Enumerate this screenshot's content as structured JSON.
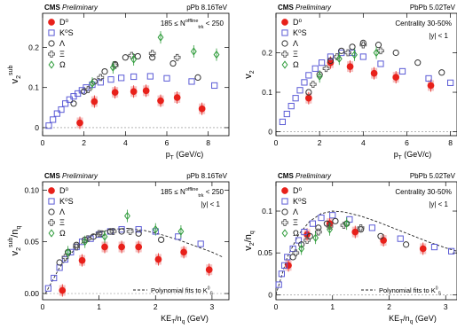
{
  "colors": {
    "D0": "#e8201a",
    "D0_box": "#f3b4b4",
    "K0S": "#5b5bd6",
    "Lambda": "#333333",
    "Xi": "#555555",
    "Omega": "#2e9b3a",
    "fit": "#222222"
  },
  "chart_data": [
    {
      "type": "scatter",
      "panel": "top-left",
      "header_cms": "CMS",
      "header_prelim": "Preliminary",
      "header_right": "pPb 8.16TeV",
      "annot_1": "185 ≤ N",
      "annot_1_sup": "offline",
      "annot_1_sub": "trk",
      "annot_1_end": " < 250",
      "annot_2": "",
      "ylabel_main": "v",
      "ylabel_sub": "2",
      "ylabel_sup": "sub",
      "ylabel_tail": "",
      "xlabel": "p",
      "xlabel_sub": "T",
      "xlabel_tail": " (GeV/c)",
      "xlim": [
        0,
        9
      ],
      "ylim": [
        -0.02,
        0.285
      ],
      "xticks": [
        0,
        2,
        4,
        6,
        8
      ],
      "yticks": [
        0,
        0.1,
        0.2
      ],
      "yticklabels": [
        "0",
        "0.1",
        "0.2"
      ],
      "legend_placement": "top-left",
      "legend": [
        "D⁰",
        "K⁰S",
        "Λ",
        "Ξ",
        "Ω"
      ],
      "series": [
        {
          "name": "D⁰",
          "marker": "filled-circle",
          "points": [
            [
              1.8,
              0.012
            ],
            [
              2.5,
              0.065
            ],
            [
              3.5,
              0.088
            ],
            [
              4.4,
              0.09
            ],
            [
              5.0,
              0.092
            ],
            [
              5.7,
              0.067
            ],
            [
              6.5,
              0.075
            ],
            [
              7.7,
              0.047
            ]
          ]
        },
        {
          "name": "K⁰S",
          "marker": "open-square",
          "points": [
            [
              0.3,
              0.005
            ],
            [
              0.5,
              0.02
            ],
            [
              0.7,
              0.035
            ],
            [
              0.9,
              0.045
            ],
            [
              1.1,
              0.06
            ],
            [
              1.3,
              0.07
            ],
            [
              1.5,
              0.078
            ],
            [
              1.7,
              0.085
            ],
            [
              1.9,
              0.093
            ],
            [
              2.1,
              0.1
            ],
            [
              2.4,
              0.107
            ],
            [
              2.8,
              0.113
            ],
            [
              3.3,
              0.12
            ],
            [
              3.8,
              0.124
            ],
            [
              4.4,
              0.127
            ],
            [
              5.2,
              0.128
            ],
            [
              6.0,
              0.123
            ],
            [
              7.2,
              0.115
            ],
            [
              8.3,
              0.105
            ]
          ]
        },
        {
          "name": "Λ",
          "marker": "open-circle",
          "points": [
            [
              1.5,
              0.06
            ],
            [
              2.0,
              0.09
            ],
            [
              2.5,
              0.115
            ],
            [
              3.0,
              0.14
            ],
            [
              3.5,
              0.158
            ],
            [
              4.0,
              0.175
            ],
            [
              4.6,
              0.178
            ],
            [
              5.3,
              0.175
            ],
            [
              6.3,
              0.16
            ],
            [
              7.5,
              0.125
            ]
          ]
        },
        {
          "name": "Ξ",
          "marker": "open-cross",
          "points": [
            [
              2.2,
              0.095
            ],
            [
              2.8,
              0.125
            ],
            [
              3.5,
              0.155
            ],
            [
              4.3,
              0.18
            ],
            [
              5.3,
              0.185
            ],
            [
              6.5,
              0.175
            ]
          ]
        },
        {
          "name": "Ω",
          "marker": "open-diamond",
          "points": [
            [
              2.4,
              0.11
            ],
            [
              3.4,
              0.15
            ],
            [
              4.4,
              0.17
            ],
            [
              5.7,
              0.225
            ],
            [
              7.3,
              0.19
            ],
            [
              8.4,
              0.182
            ]
          ]
        }
      ],
      "fit_curve": null
    },
    {
      "type": "scatter",
      "panel": "top-right",
      "header_cms": "CMS",
      "header_prelim": "Preliminary",
      "header_right": "PbPb 5.02TeV",
      "annot_1": "Centrality 30-50%",
      "annot_1_sup": "",
      "annot_1_sub": "",
      "annot_1_end": "",
      "annot_2": "|y| < 1",
      "ylabel_main": "v",
      "ylabel_sub": "2",
      "ylabel_sup": "",
      "ylabel_tail": "",
      "xlabel": "p",
      "xlabel_sub": "T",
      "xlabel_tail": " (GeV/c)",
      "xlim": [
        0,
        8.3
      ],
      "ylim": [
        -0.01,
        0.3
      ],
      "xticks": [
        0,
        2,
        4,
        6,
        8
      ],
      "yticks": [
        0,
        0.1,
        0.2
      ],
      "yticklabels": [
        "0",
        "0.1",
        "0.2"
      ],
      "legend_placement": "top-left",
      "legend": [
        "D⁰",
        "K⁰S",
        "Λ",
        "Ξ",
        "Ω"
      ],
      "series": [
        {
          "name": "D⁰",
          "marker": "filled-circle",
          "points": [
            [
              1.5,
              0.085
            ],
            [
              2.5,
              0.175
            ],
            [
              3.4,
              0.165
            ],
            [
              4.5,
              0.148
            ],
            [
              5.5,
              0.138
            ],
            [
              7.1,
              0.117
            ]
          ]
        },
        {
          "name": "K⁰S",
          "marker": "open-square",
          "points": [
            [
              0.3,
              0.025
            ],
            [
              0.5,
              0.045
            ],
            [
              0.7,
              0.065
            ],
            [
              0.9,
              0.085
            ],
            [
              1.1,
              0.105
            ],
            [
              1.3,
              0.125
            ],
            [
              1.5,
              0.143
            ],
            [
              1.8,
              0.16
            ],
            [
              2.1,
              0.175
            ],
            [
              2.5,
              0.19
            ],
            [
              3.0,
              0.2
            ],
            [
              3.5,
              0.2
            ],
            [
              4.0,
              0.19
            ],
            [
              4.8,
              0.172
            ],
            [
              5.8,
              0.153
            ],
            [
              7.0,
              0.135
            ],
            [
              8.0,
              0.124
            ]
          ]
        },
        {
          "name": "Λ",
          "marker": "open-circle",
          "points": [
            [
              1.5,
              0.1
            ],
            [
              2.0,
              0.145
            ],
            [
              2.5,
              0.18
            ],
            [
              3.0,
              0.205
            ],
            [
              3.5,
              0.215
            ],
            [
              4.0,
              0.225
            ],
            [
              4.7,
              0.22
            ],
            [
              5.5,
              0.2
            ],
            [
              6.5,
              0.175
            ],
            [
              7.6,
              0.15
            ]
          ]
        },
        {
          "name": "Ξ",
          "marker": "open-cross",
          "points": [
            [
              1.7,
              0.12
            ],
            [
              2.3,
              0.16
            ],
            [
              2.8,
              0.19
            ],
            [
              3.3,
              0.2
            ],
            [
              4.0,
              0.22
            ],
            [
              4.8,
              0.205
            ]
          ]
        },
        {
          "name": "Ω",
          "marker": "open-diamond",
          "points": [
            [
              2.0,
              0.14
            ],
            [
              2.9,
              0.185
            ],
            [
              3.6,
              0.195
            ],
            [
              4.6,
              0.2
            ]
          ]
        }
      ],
      "fit_curve": null
    },
    {
      "type": "scatter",
      "panel": "bottom-left",
      "header_cms": "CMS",
      "header_prelim": "Preliminary",
      "header_right": "pPb 8.16TeV",
      "annot_1": "185 ≤ N",
      "annot_1_sup": "offline",
      "annot_1_sub": "trk",
      "annot_1_end": " < 250",
      "annot_2": "|y| < 1",
      "ylabel_main": "v",
      "ylabel_sub": "2",
      "ylabel_sup": "sub",
      "ylabel_tail": "/n",
      "ylabel_tail_sub": "q",
      "xlabel": "KE",
      "xlabel_sub": "T",
      "xlabel_tail": "/n",
      "xlabel_tail_sub": "q",
      "xlabel_end": " (GeV)",
      "xlim": [
        0,
        3.3
      ],
      "ylim": [
        -0.006,
        0.108
      ],
      "xticks": [
        0,
        1,
        2,
        3
      ],
      "yticks": [
        0,
        0.05,
        0.1
      ],
      "yticklabels": [
        "0.00",
        "0.05",
        "0.10"
      ],
      "legend_placement": "top-left",
      "legend": [
        "D⁰",
        "K⁰S",
        "Λ",
        "Ξ",
        "Ω"
      ],
      "fit_label": "Polynomial fits to K",
      "fit_label_sup": "0",
      "fit_label_sub": "S",
      "series": [
        {
          "name": "D⁰",
          "marker": "filled-circle",
          "points": [
            [
              0.35,
              0.003
            ],
            [
              0.7,
              0.032
            ],
            [
              1.1,
              0.045
            ],
            [
              1.4,
              0.045
            ],
            [
              1.7,
              0.045
            ],
            [
              2.05,
              0.033
            ],
            [
              2.5,
              0.04
            ],
            [
              2.95,
              0.023
            ]
          ]
        },
        {
          "name": "K⁰S",
          "marker": "open-square",
          "points": [
            [
              0.1,
              0.005
            ],
            [
              0.2,
              0.015
            ],
            [
              0.3,
              0.025
            ],
            [
              0.4,
              0.033
            ],
            [
              0.5,
              0.04
            ],
            [
              0.6,
              0.045
            ],
            [
              0.7,
              0.05
            ],
            [
              0.85,
              0.053
            ],
            [
              1.0,
              0.057
            ],
            [
              1.2,
              0.06
            ],
            [
              1.4,
              0.062
            ],
            [
              1.7,
              0.062
            ],
            [
              2.0,
              0.06
            ],
            [
              2.4,
              0.055
            ],
            [
              2.8,
              0.048
            ]
          ]
        },
        {
          "name": "Λ",
          "marker": "open-circle",
          "points": [
            [
              0.3,
              0.03
            ],
            [
              0.45,
              0.04
            ],
            [
              0.6,
              0.047
            ],
            [
              0.75,
              0.052
            ],
            [
              0.9,
              0.055
            ],
            [
              1.05,
              0.058
            ],
            [
              1.2,
              0.06
            ],
            [
              1.4,
              0.06
            ],
            [
              1.7,
              0.058
            ],
            [
              2.1,
              0.052
            ]
          ]
        },
        {
          "name": "Ξ",
          "marker": "open-cross",
          "points": [
            [
              0.4,
              0.035
            ],
            [
              0.6,
              0.045
            ],
            [
              0.8,
              0.053
            ],
            [
              1.0,
              0.058
            ],
            [
              1.25,
              0.06
            ],
            [
              1.55,
              0.06
            ]
          ]
        },
        {
          "name": "Ω",
          "marker": "open-diamond",
          "points": [
            [
              0.45,
              0.04
            ],
            [
              0.75,
              0.05
            ],
            [
              1.1,
              0.055
            ],
            [
              1.5,
              0.075
            ],
            [
              2.0,
              0.062
            ],
            [
              2.45,
              0.06
            ]
          ]
        }
      ],
      "fit_curve": {
        "x": [
          0.05,
          0.3,
          0.6,
          0.9,
          1.2,
          1.5,
          1.8,
          2.1,
          2.4,
          2.7,
          3.0,
          3.2
        ],
        "y": [
          0.0,
          0.025,
          0.045,
          0.057,
          0.062,
          0.063,
          0.061,
          0.057,
          0.052,
          0.046,
          0.04,
          0.035
        ]
      }
    },
    {
      "type": "scatter",
      "panel": "bottom-right",
      "header_cms": "CMS",
      "header_prelim": "Preliminary",
      "header_right": "PbPb 5.02TeV",
      "annot_1": "Centrality 30-50%",
      "annot_1_sup": "",
      "annot_1_sub": "",
      "annot_1_end": "",
      "annot_2": "|y| < 1",
      "ylabel_main": "v",
      "ylabel_sub": "2",
      "ylabel_sup": "",
      "ylabel_tail": "/n",
      "ylabel_tail_sub": "q",
      "xlabel": "KE",
      "xlabel_sub": "T",
      "xlabel_tail": "/n",
      "xlabel_tail_sub": "q",
      "xlabel_end": " (GeV)",
      "xlim": [
        0,
        3.2
      ],
      "ylim": [
        -0.006,
        0.135
      ],
      "xticks": [
        0,
        1,
        2,
        3
      ],
      "yticks": [
        0,
        0.05,
        0.1
      ],
      "yticklabels": [
        "0",
        "0.05",
        "0.1"
      ],
      "legend_placement": "top-left",
      "legend": [
        "D⁰",
        "K⁰S",
        "Λ",
        "Ξ",
        "Ω"
      ],
      "fit_label": "Polynomial fits to K",
      "fit_label_sup": "0",
      "fit_label_sub": "S",
      "series": [
        {
          "name": "D⁰",
          "marker": "filled-circle",
          "points": [
            [
              0.22,
              0.035
            ],
            [
              0.55,
              0.072
            ],
            [
              0.95,
              0.085
            ],
            [
              1.4,
              0.075
            ],
            [
              1.9,
              0.065
            ],
            [
              2.6,
              0.055
            ]
          ]
        },
        {
          "name": "K⁰S",
          "marker": "open-square",
          "points": [
            [
              0.05,
              0.012
            ],
            [
              0.1,
              0.025
            ],
            [
              0.15,
              0.035
            ],
            [
              0.2,
              0.045
            ],
            [
              0.3,
              0.055
            ],
            [
              0.4,
              0.065
            ],
            [
              0.5,
              0.075
            ],
            [
              0.65,
              0.085
            ],
            [
              0.8,
              0.092
            ],
            [
              1.0,
              0.095
            ],
            [
              1.3,
              0.09
            ],
            [
              1.7,
              0.08
            ],
            [
              2.2,
              0.067
            ],
            [
              2.8,
              0.057
            ],
            [
              3.1,
              0.052
            ]
          ]
        },
        {
          "name": "Λ",
          "marker": "open-circle",
          "points": [
            [
              0.3,
              0.045
            ],
            [
              0.45,
              0.06
            ],
            [
              0.6,
              0.07
            ],
            [
              0.75,
              0.08
            ],
            [
              0.9,
              0.085
            ],
            [
              1.05,
              0.088
            ],
            [
              1.25,
              0.085
            ],
            [
              1.5,
              0.078
            ],
            [
              1.85,
              0.07
            ],
            [
              2.3,
              0.06
            ]
          ]
        },
        {
          "name": "Ξ",
          "marker": "open-cross",
          "points": [
            [
              0.35,
              0.05
            ],
            [
              0.55,
              0.065
            ],
            [
              0.75,
              0.075
            ],
            [
              0.95,
              0.082
            ],
            [
              1.2,
              0.083
            ],
            [
              1.5,
              0.08
            ]
          ]
        },
        {
          "name": "Ω",
          "marker": "open-diamond",
          "points": [
            [
              0.45,
              0.055
            ],
            [
              0.7,
              0.068
            ],
            [
              0.95,
              0.078
            ],
            [
              1.25,
              0.085
            ]
          ]
        }
      ],
      "fit_curve": {
        "x": [
          0.0,
          0.2,
          0.4,
          0.6,
          0.8,
          1.0,
          1.2,
          1.5,
          1.8,
          2.1,
          2.4,
          2.7,
          3.0,
          3.2
        ],
        "y": [
          0.0,
          0.045,
          0.072,
          0.088,
          0.097,
          0.1,
          0.099,
          0.094,
          0.087,
          0.079,
          0.071,
          0.063,
          0.056,
          0.052
        ]
      }
    }
  ]
}
